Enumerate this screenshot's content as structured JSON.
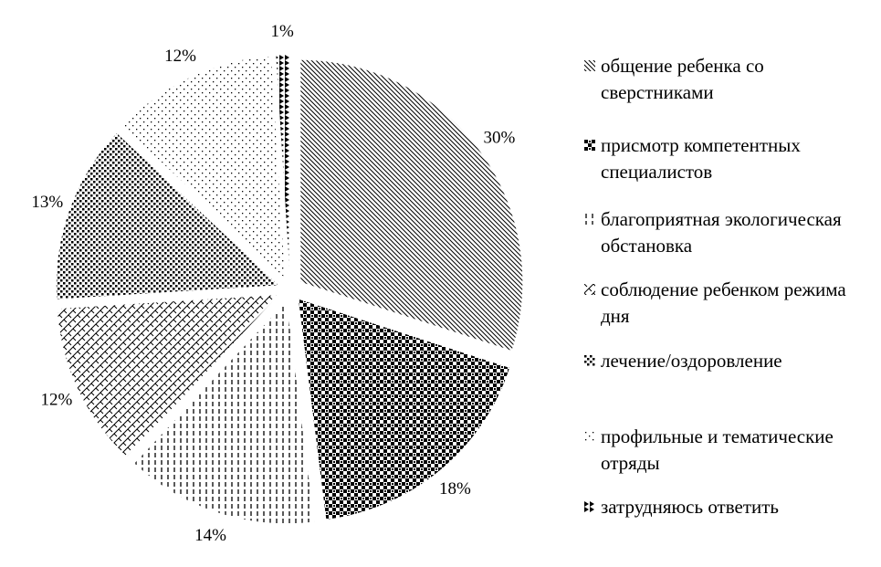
{
  "chart_data": {
    "type": "pie",
    "title": "",
    "legend_position": "right",
    "slices": [
      {
        "label": "общение ребенка со сверстниками",
        "value": 30,
        "value_label": "30%",
        "pattern": "diagonal"
      },
      {
        "label": "присмотр компетентных специалистов",
        "value": 18,
        "value_label": "18%",
        "pattern": "checker"
      },
      {
        "label": "благоприятная экологическая обстановка",
        "value": 14,
        "value_label": "14%",
        "pattern": "vertical-dashes"
      },
      {
        "label": "соблюдение ребенком режима дня",
        "value": 12,
        "value_label": "12%",
        "pattern": "crosshatch"
      },
      {
        "label": "лечение/оздоровление",
        "value": 13,
        "value_label": "13%",
        "pattern": "dense-dots"
      },
      {
        "label": "профильные и тематические отряды",
        "value": 12,
        "value_label": "12%",
        "pattern": "sparse-dots"
      },
      {
        "label": "затрудняюсь ответить",
        "value": 1,
        "value_label": "1%",
        "pattern": "dark-triangles"
      }
    ]
  }
}
